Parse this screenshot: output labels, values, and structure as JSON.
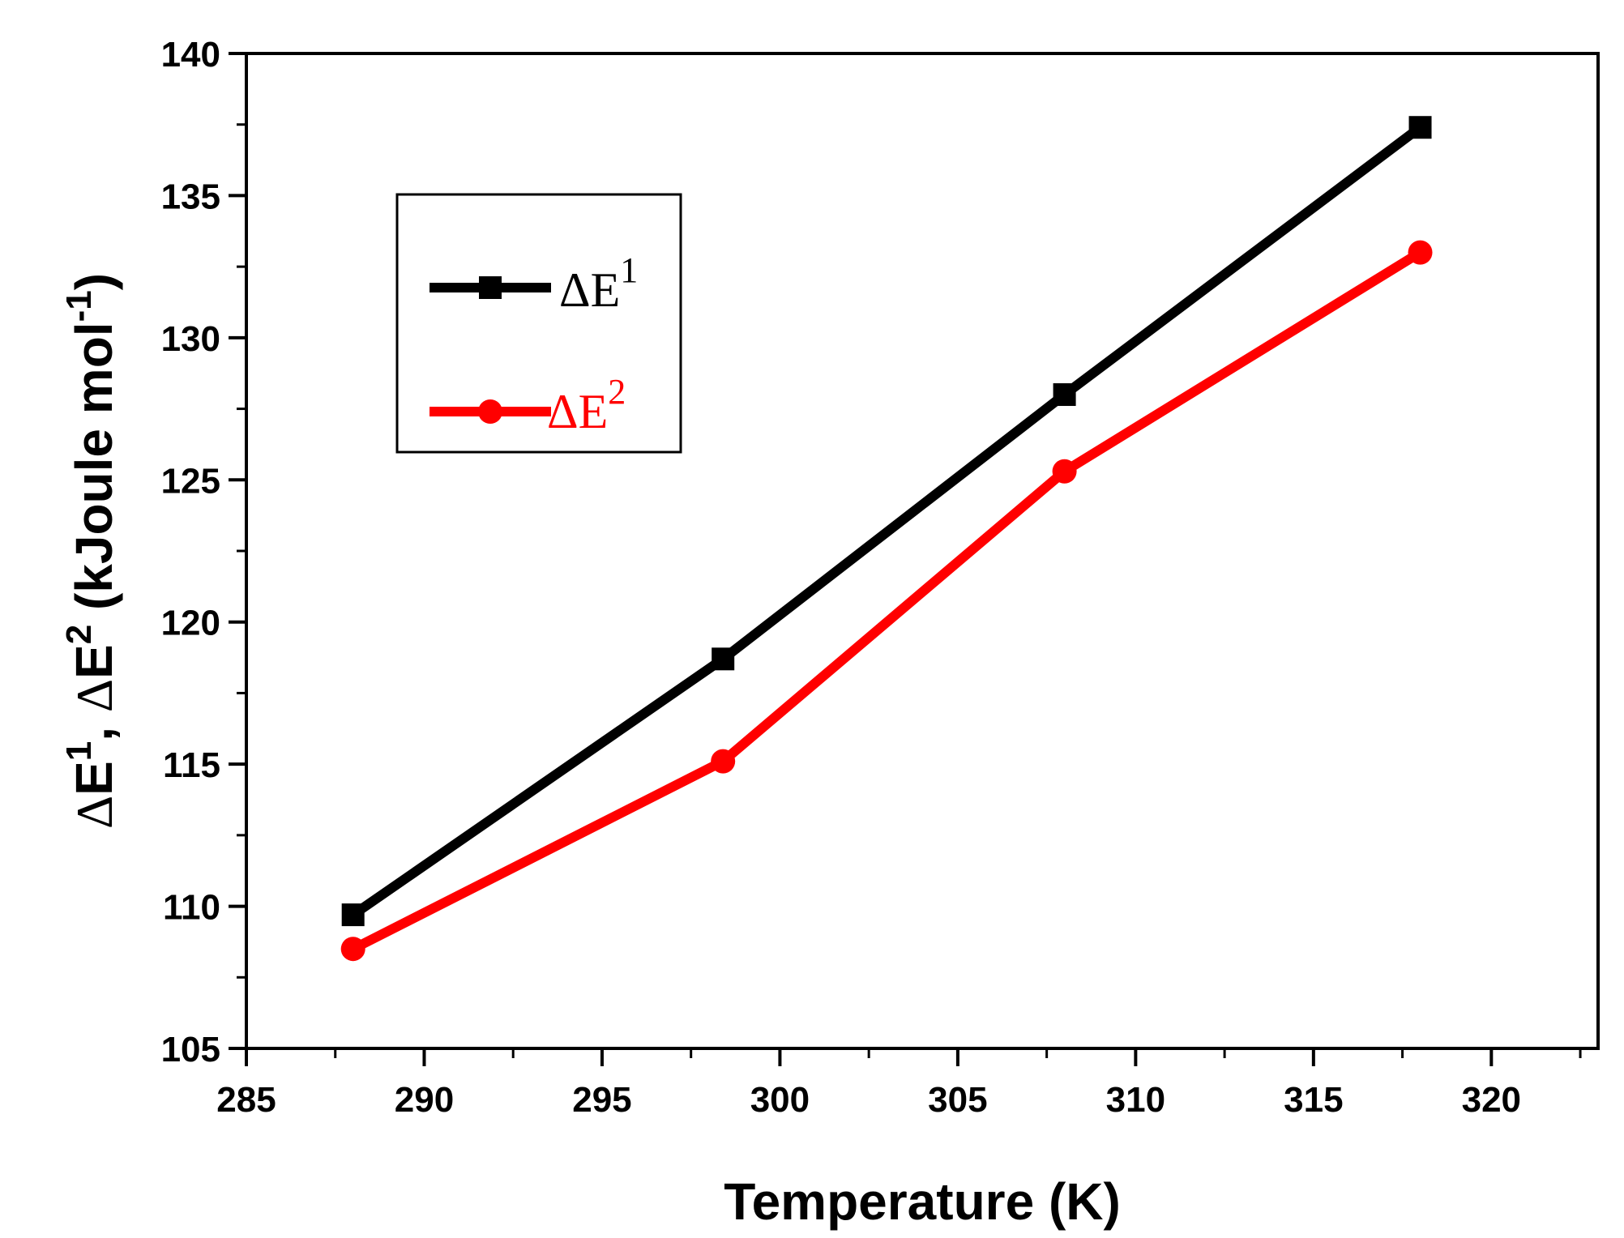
{
  "chart_data": {
    "type": "line",
    "title": "",
    "xlabel": "Temperature (K)",
    "ylabel": {
      "delta": "Δ",
      "e": "E",
      "sup1": "1",
      "sep": ", ",
      "sup2": "2",
      "unit_pre": " (kJoule mol",
      "unit_sup": "-1",
      "unit_post": ")"
    },
    "xlim": [
      285,
      323
    ],
    "ylim": [
      105,
      140
    ],
    "xticks": [
      "285",
      "290",
      "295",
      "300",
      "305",
      "310",
      "315",
      "320"
    ],
    "yticks": [
      "105",
      "110",
      "115",
      "120",
      "125",
      "130",
      "135",
      "140"
    ],
    "x_tick_values": [
      285,
      290,
      295,
      300,
      305,
      310,
      315,
      320
    ],
    "y_tick_values": [
      105,
      110,
      115,
      120,
      125,
      130,
      135,
      140
    ],
    "x": [
      288,
      298.4,
      308,
      318
    ],
    "series": [
      {
        "name": "ΔE1",
        "label_main": "ΔE",
        "label_sup": "1",
        "color": "#000000",
        "marker": "square",
        "values": [
          109.7,
          118.7,
          128.0,
          137.4
        ]
      },
      {
        "name": "ΔE2",
        "label_main": "ΔE",
        "label_sup": "2",
        "color": "#ff0000",
        "marker": "circle",
        "values": [
          108.5,
          115.1,
          125.3,
          133.0
        ]
      }
    ],
    "legend": "top-left",
    "grid": false
  }
}
